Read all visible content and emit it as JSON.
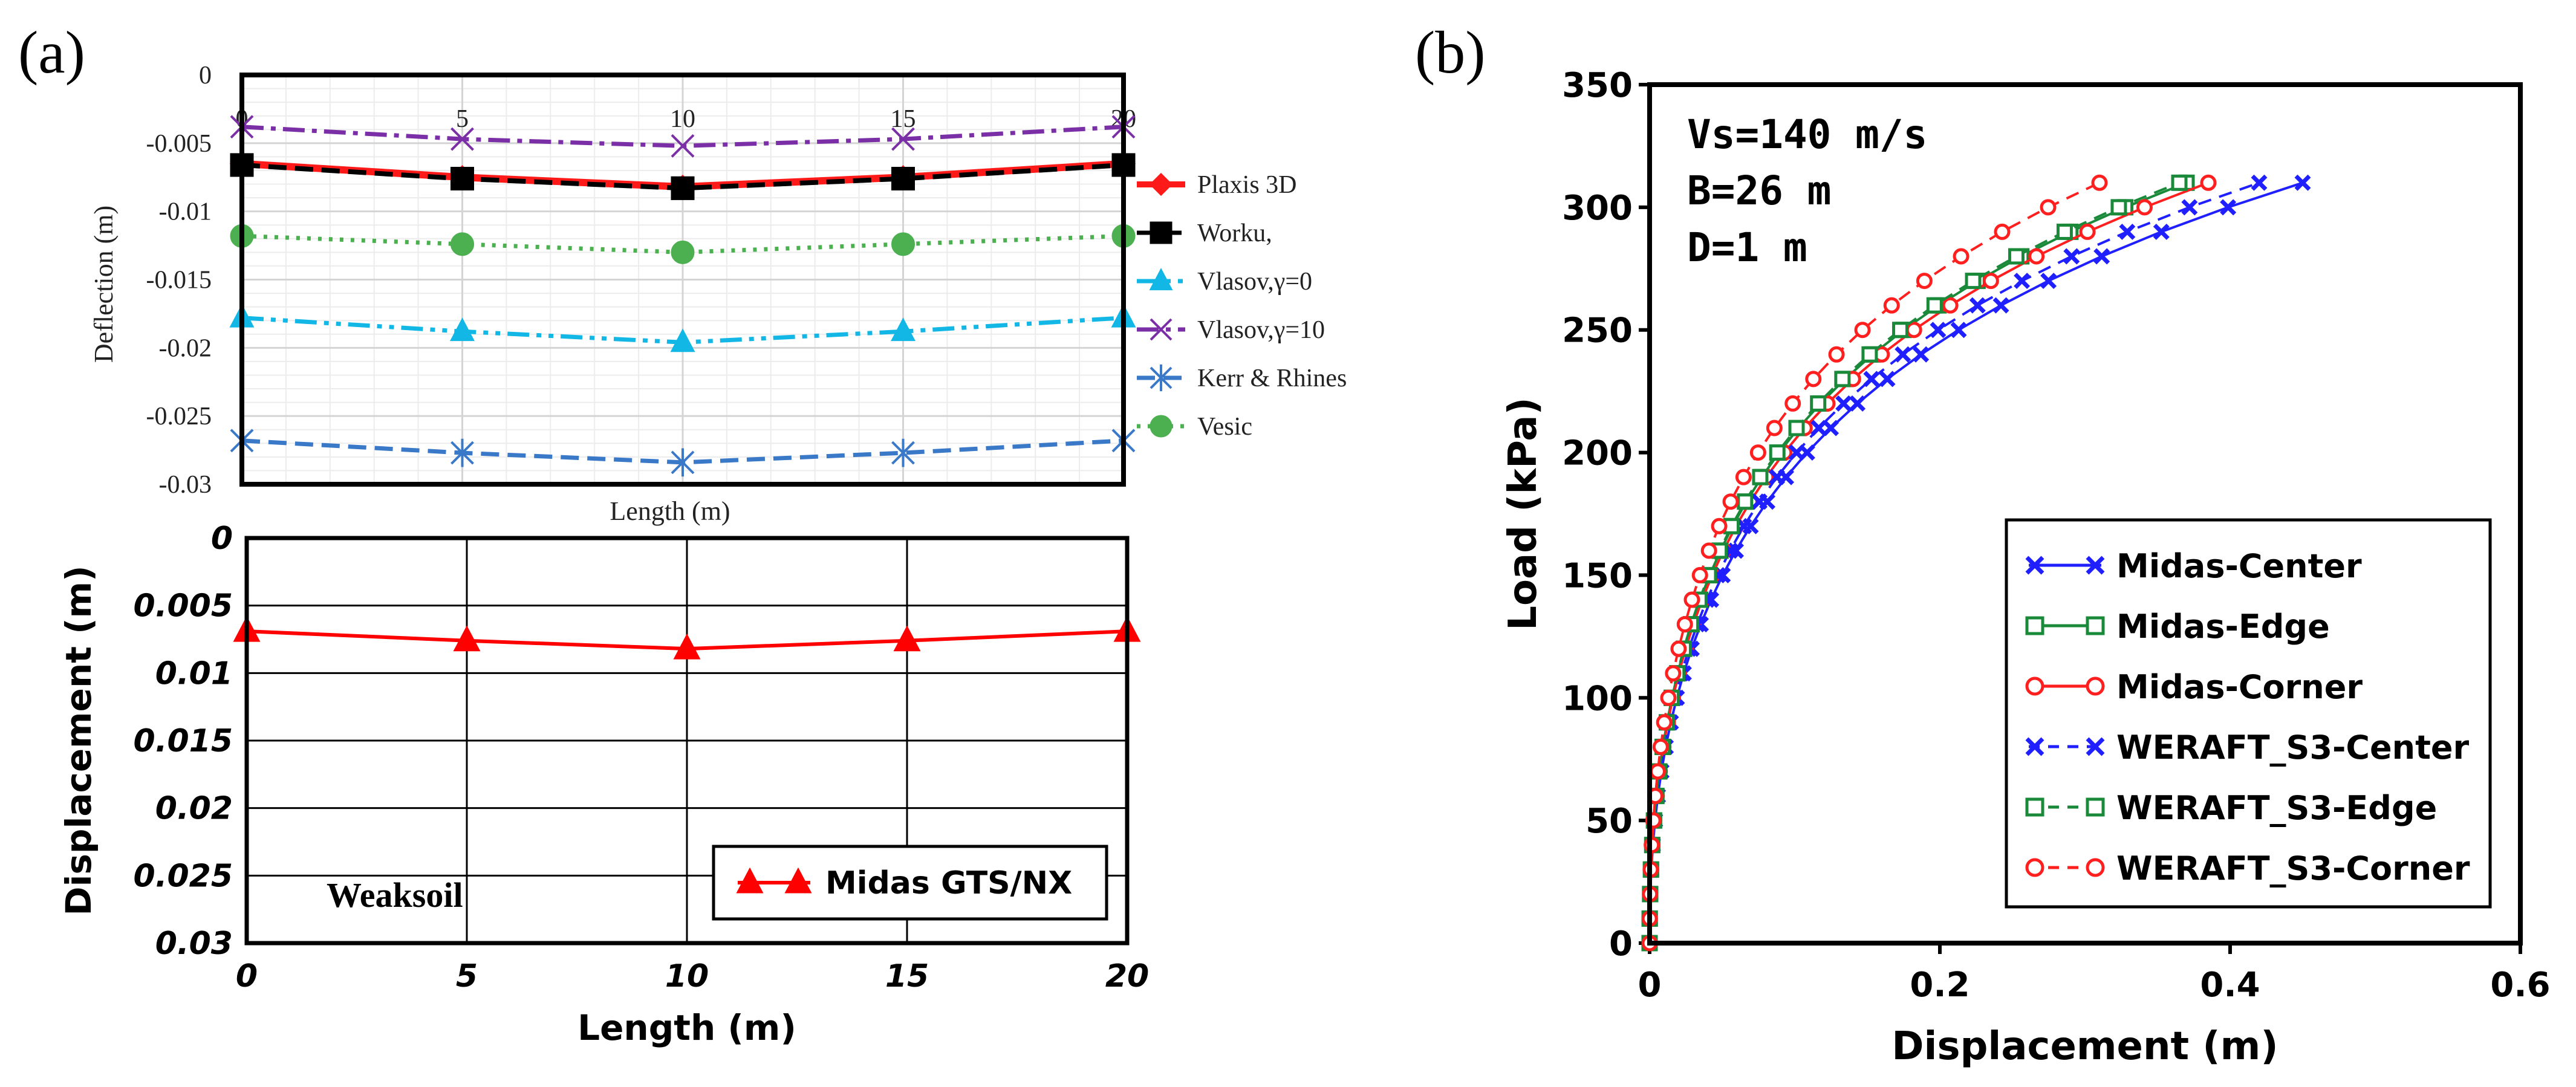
{
  "chart_data": [
    {
      "id": "top",
      "type": "line",
      "panel_label": "(a)",
      "xlabel": "Length (m)",
      "ylabel": "Deflection (m)",
      "xlim": [
        0,
        20
      ],
      "ylim": [
        -0.03,
        0
      ],
      "xticks": [
        "0",
        "5",
        "10",
        "15",
        "20"
      ],
      "yticks": [
        "0",
        "-0.005",
        "-0.01",
        "-0.015",
        "-0.02",
        "-0.025",
        "-0.03"
      ],
      "x": [
        0,
        5,
        10,
        15,
        20
      ],
      "series": [
        {
          "name": "Plaxis 3D",
          "values": [
            -0.0065,
            -0.0075,
            -0.0082,
            -0.0075,
            -0.0065
          ],
          "color": "#ff1a1a",
          "marker": "diamond",
          "dash": "solid"
        },
        {
          "name": "Worku,",
          "values": [
            -0.0066,
            -0.0076,
            -0.0083,
            -0.0076,
            -0.0066
          ],
          "color": "#000000",
          "marker": "square",
          "dash": "dashed"
        },
        {
          "name": "Vlasov,γ=0",
          "values": [
            -0.0178,
            -0.0188,
            -0.0196,
            -0.0188,
            -0.0178
          ],
          "color": "#12b7e6",
          "marker": "triangle",
          "dash": "dashdotdot"
        },
        {
          "name": "Vlasov,γ=10",
          "values": [
            -0.0038,
            -0.0047,
            -0.0052,
            -0.0047,
            -0.0038
          ],
          "color": "#7b2fa6",
          "marker": "x",
          "dash": "dashdot"
        },
        {
          "name": "Kerr & Rhines",
          "values": [
            -0.0268,
            -0.0277,
            -0.0284,
            -0.0277,
            -0.0268
          ],
          "color": "#3a78c8",
          "marker": "star",
          "dash": "dashed"
        },
        {
          "name": "Vesic",
          "values": [
            -0.0118,
            -0.0124,
            -0.013,
            -0.0124,
            -0.0118
          ],
          "color": "#4caf50",
          "marker": "circle",
          "dash": "dotted"
        }
      ]
    },
    {
      "id": "bottom",
      "type": "line",
      "xlabel": "Length (m)",
      "ylabel": "Displacement (m)",
      "xlim": [
        0,
        20
      ],
      "ylim": [
        0,
        0.03
      ],
      "xticks": [
        "0",
        "5",
        "10",
        "15",
        "20"
      ],
      "yticks": [
        "0",
        "0.005",
        "0.01",
        "0.015",
        "0.02",
        "0.025",
        "0.03"
      ],
      "x": [
        0,
        5,
        10,
        15,
        20
      ],
      "annotation": "Weaksoil",
      "series": [
        {
          "name": "Midas GTS/NX",
          "values": [
            0.0069,
            0.0076,
            0.0082,
            0.0076,
            0.0069
          ],
          "color": "#ff0000",
          "marker": "triangle"
        }
      ]
    },
    {
      "id": "right",
      "type": "line",
      "panel_label": "(b)",
      "xlabel": "Displacement (m)",
      "ylabel": "Load (kPa)",
      "xlim": [
        0,
        0.6
      ],
      "ylim": [
        0,
        350
      ],
      "xticks": [
        "0",
        "0.2",
        "0.4",
        "0.6"
      ],
      "yticks": [
        "0",
        "50",
        "100",
        "150",
        "200",
        "250",
        "300",
        "350"
      ],
      "annotations": [
        "Vs=140 m/s",
        "B=26 m",
        "D=1 m"
      ],
      "loads": [
        0,
        10,
        20,
        30,
        40,
        50,
        60,
        70,
        80,
        90,
        100,
        110,
        120,
        130,
        140,
        150,
        160,
        170,
        180,
        190,
        200,
        210,
        220,
        230,
        240,
        250,
        260,
        270,
        280,
        290,
        300,
        310
      ],
      "series": [
        {
          "name": "Midas-Center",
          "color": "#1f1fff",
          "marker": "x",
          "dash": "solid",
          "kScale": 1.0,
          "xEnd": 0.45
        },
        {
          "name": "Midas-Edge",
          "color": "#1a8a3a",
          "marker": "square",
          "dash": "solid",
          "kScale": 0.875,
          "xEnd": 0.37
        },
        {
          "name": "Midas-Corner",
          "color": "#ff1f1f",
          "marker": "circle",
          "dash": "solid",
          "kScale": 0.74,
          "xEnd": 0.385
        },
        {
          "name": "WERAFT_S3-Center",
          "color": "#1f1fff",
          "marker": "x",
          "dash": "dashed",
          "kScale": 0.97,
          "xEnd": 0.42
        },
        {
          "name": "WERAFT_S3-Edge",
          "color": "#1a8a3a",
          "marker": "square",
          "dash": "dashed",
          "kScale": 0.83,
          "xEnd": 0.365
        },
        {
          "name": "WERAFT_S3-Corner",
          "color": "#ff1f1f",
          "marker": "circle",
          "dash": "dashed",
          "kScale": 0.69,
          "xEnd": 0.31
        }
      ]
    }
  ]
}
